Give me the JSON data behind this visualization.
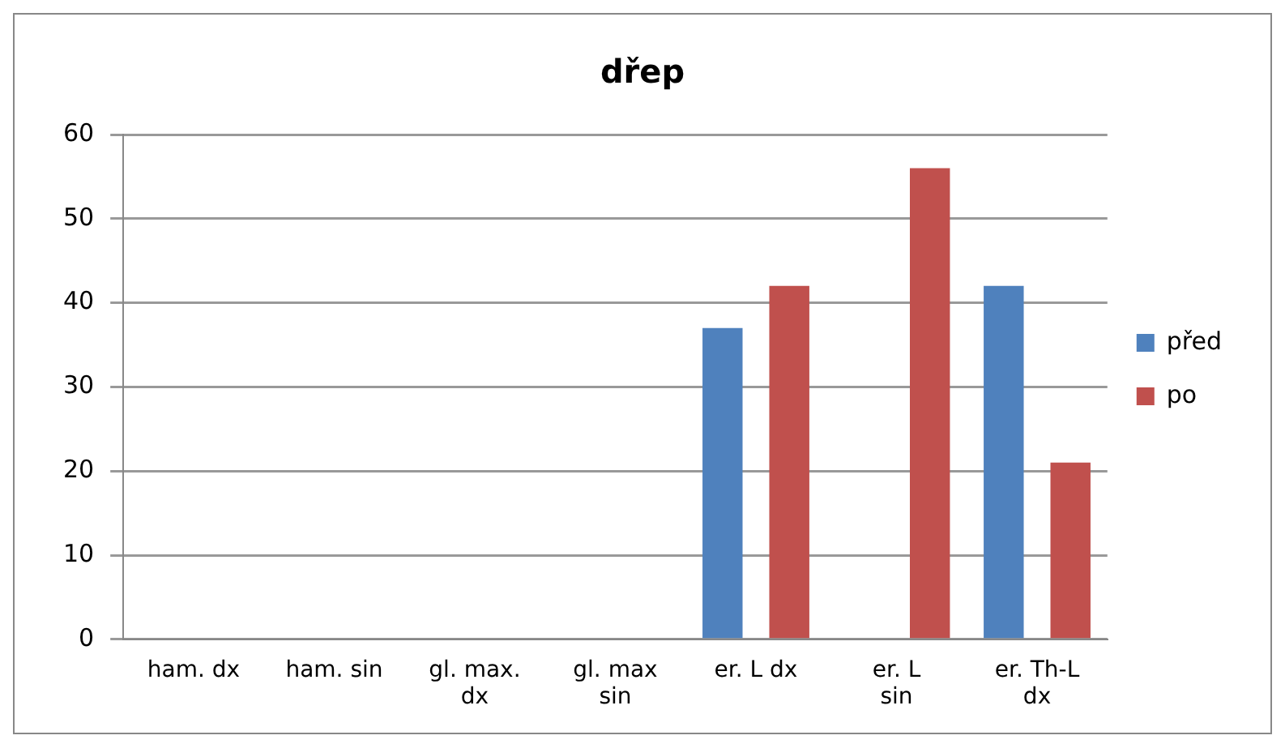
{
  "chart_data": {
    "type": "bar",
    "title": "dřep",
    "categories": [
      "ham. dx",
      "ham. sin",
      "gl. max. dx",
      "gl. max sin",
      "er. L dx",
      "er. L sin",
      "er. Th-L dx"
    ],
    "series": [
      {
        "name": "před",
        "color": "#4f81bd",
        "values": [
          0,
          0,
          0,
          0,
          37,
          0,
          42
        ]
      },
      {
        "name": "po",
        "color": "#c0504d",
        "values": [
          0,
          0,
          0,
          0,
          42,
          56,
          21
        ]
      }
    ],
    "ylim": [
      0,
      60
    ],
    "yticks": [
      0,
      10,
      20,
      30,
      40,
      50,
      60
    ],
    "grid": "y",
    "legend": "right"
  }
}
